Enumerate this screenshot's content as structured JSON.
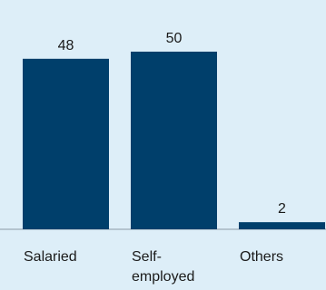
{
  "chart_data": {
    "type": "bar",
    "categories": [
      [
        "Salaried"
      ],
      [
        "Self-",
        "employed"
      ],
      [
        "Others"
      ]
    ],
    "values": [
      48,
      50,
      2
    ],
    "value_labels": [
      "48",
      "50",
      "2"
    ],
    "title": "",
    "xlabel": "",
    "ylabel": "",
    "ylim": [
      0,
      50
    ],
    "grid": false,
    "legend": "none"
  },
  "colors": {
    "background": "#ddeef8",
    "bar": "#003f6b",
    "baseline": "#8a9aa6",
    "text": "#1a1a1a"
  }
}
